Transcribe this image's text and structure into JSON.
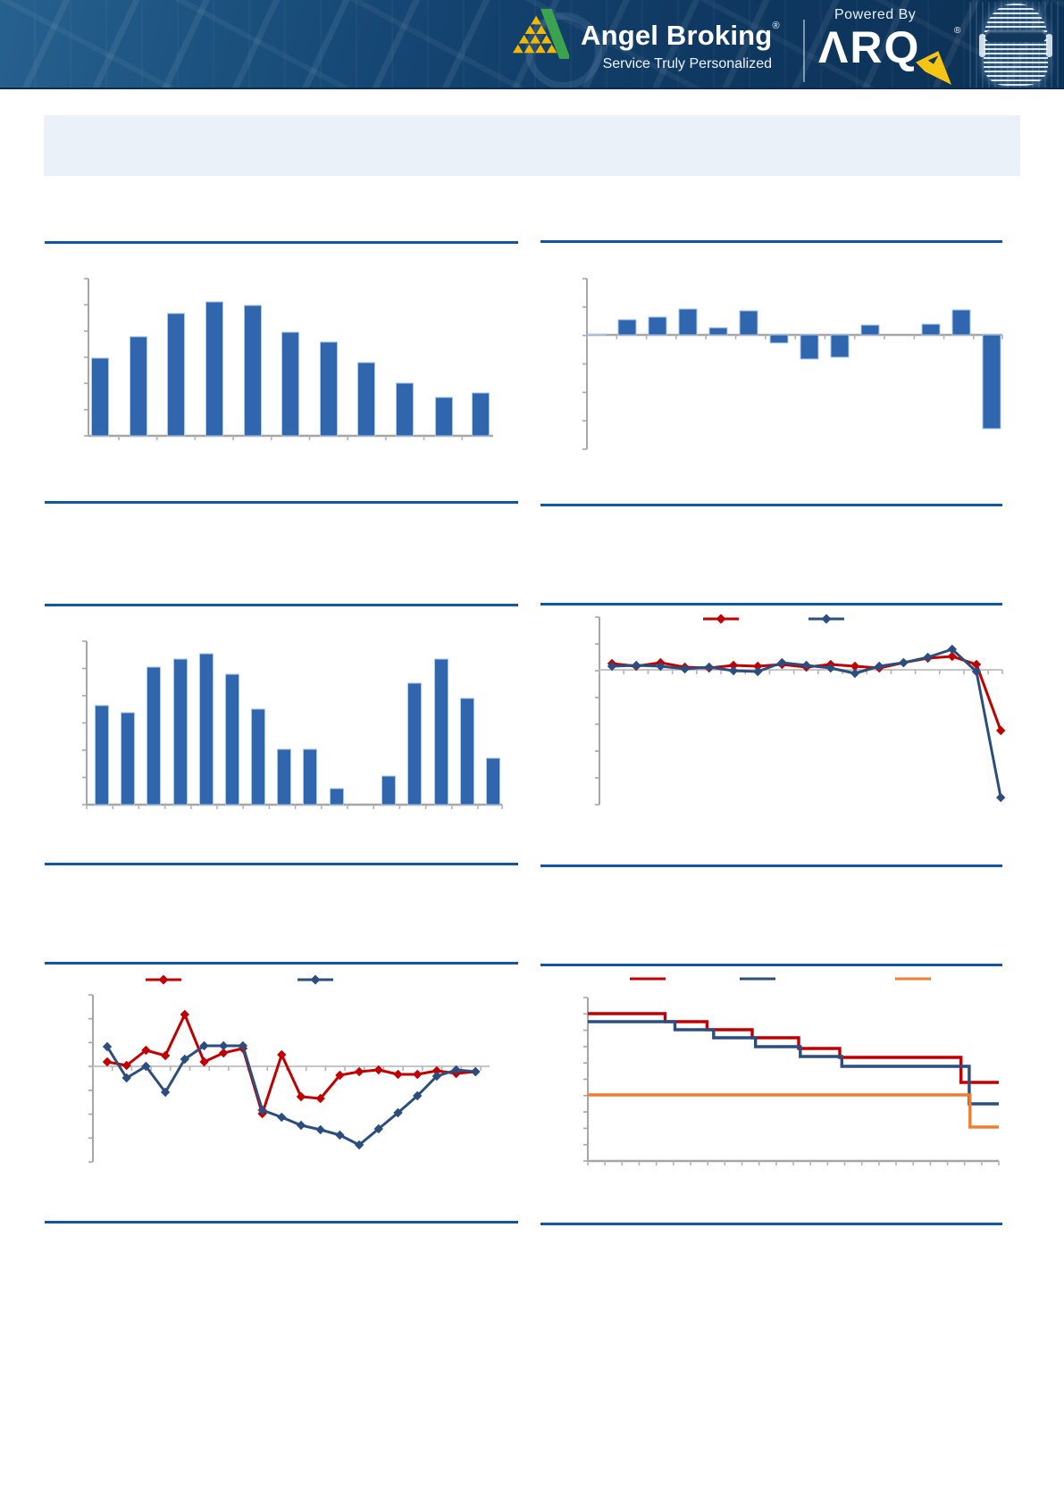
{
  "header": {
    "brand": "Angel Broking",
    "brand_reg": "®",
    "tagline": "Service Truly Personalized",
    "powered_by": "Powered By",
    "arq_brand": "ΛRQ",
    "arq_reg": "®"
  },
  "title_box": {
    "text": ""
  },
  "colors": {
    "accent_rule": "#1156a4",
    "header_navy": "#0d3a66",
    "panel_bg": "#eaf1f8",
    "bar_fill": "#2f66ae",
    "bar_edge": "#a9c7e9",
    "series_red": "#c00000",
    "series_blue": "#2b4e7e",
    "series_orange": "#ed7d31",
    "axis_gray": "#a6a6a6",
    "tick_gray": "#b3b3b3",
    "zero_gray": "#c6c6c6",
    "logo_green": "#3ba24f",
    "logo_gold": "#f3b800",
    "bolt_yellow": "#f6c514"
  },
  "chart_data": [
    {
      "id": "chart-bar-top-left",
      "type": "bar",
      "title": "",
      "xlabel": "",
      "ylabel": "",
      "values": [
        87,
        111,
        137,
        150,
        146,
        116,
        105,
        82,
        59,
        43,
        48
      ],
      "ylim": [
        0,
        176
      ],
      "grid": false,
      "bar_color": "#2f66ae"
    },
    {
      "id": "chart-bar-top-right",
      "type": "bar",
      "title": "",
      "xlabel": "",
      "ylabel": "",
      "values": [
        1,
        17,
        20,
        29,
        8,
        27,
        -9,
        -27,
        -25,
        11,
        0,
        12,
        28,
        -105
      ],
      "ylim": [
        -128,
        63
      ],
      "grid": false,
      "bar_color": "#2f66ae"
    },
    {
      "id": "chart-bar-mid-left",
      "type": "bar",
      "title": "",
      "xlabel": "",
      "ylabel": "",
      "values": [
        111,
        103,
        154,
        163,
        169,
        146,
        107,
        62,
        62,
        18,
        0,
        32,
        136,
        163,
        119,
        52
      ],
      "ylim": [
        0,
        183
      ],
      "grid": false,
      "bar_color": "#2f66ae"
    },
    {
      "id": "chart-line-mid-right",
      "type": "line",
      "title": "",
      "xlabel": "",
      "ylabel": "",
      "legend_position": "top",
      "series": [
        {
          "name": "series-red",
          "label": "",
          "color": "#c00000",
          "values": [
            7,
            4,
            8,
            3,
            2,
            5,
            4,
            6,
            3,
            6,
            4,
            2,
            8,
            13,
            15,
            6,
            -68
          ]
        },
        {
          "name": "series-blue",
          "label": "",
          "color": "#2b4e7e",
          "values": [
            4,
            5,
            4,
            1,
            3,
            -1,
            -2,
            8,
            5,
            2,
            -4,
            4,
            8,
            14,
            23,
            -2,
            -143
          ]
        }
      ],
      "ylim": [
        -151,
        59
      ],
      "grid": false
    },
    {
      "id": "chart-line-bottom-left",
      "type": "line",
      "title": "",
      "xlabel": "",
      "ylabel": "",
      "legend_position": "top",
      "series": [
        {
          "name": "series-red",
          "label": "",
          "color": "#c00000",
          "values": [
            5,
            1,
            18,
            12,
            58,
            5,
            15,
            20,
            -53,
            13,
            -34,
            -36,
            -10,
            -6,
            -4,
            -9,
            -9,
            -5,
            -8,
            -6
          ]
        },
        {
          "name": "series-blue",
          "label": "",
          "color": "#2b4e7e",
          "values": [
            22,
            -13,
            0,
            -29,
            8,
            23,
            23,
            23,
            -49,
            -57,
            -66,
            -71,
            -77,
            -88,
            -70,
            -52,
            -33,
            -11,
            -4,
            -6
          ]
        }
      ],
      "ylim": [
        -107,
        80
      ],
      "grid": false
    },
    {
      "id": "chart-step-bottom-right",
      "type": "step",
      "title": "",
      "xlabel": "",
      "ylabel": "",
      "legend_position": "top",
      "series": [
        {
          "name": "series-red",
          "label": "",
          "color": "#c00000",
          "levels": [
            165,
            156,
            147,
            138,
            126,
            116,
            88
          ],
          "breaks": [
            0.188,
            0.29,
            0.4,
            0.513,
            0.613,
            0.908
          ]
        },
        {
          "name": "series-blue",
          "label": "",
          "color": "#2b4e7e",
          "levels": [
            156,
            147,
            138,
            128,
            117,
            106,
            64
          ],
          "breaks": [
            0.212,
            0.306,
            0.408,
            0.517,
            0.618,
            0.928
          ]
        },
        {
          "name": "series-orange",
          "label": "",
          "color": "#ed7d31",
          "levels": [
            74,
            38
          ],
          "breaks": [
            0.93
          ]
        }
      ],
      "ylim": [
        0,
        183
      ],
      "grid": false
    }
  ]
}
